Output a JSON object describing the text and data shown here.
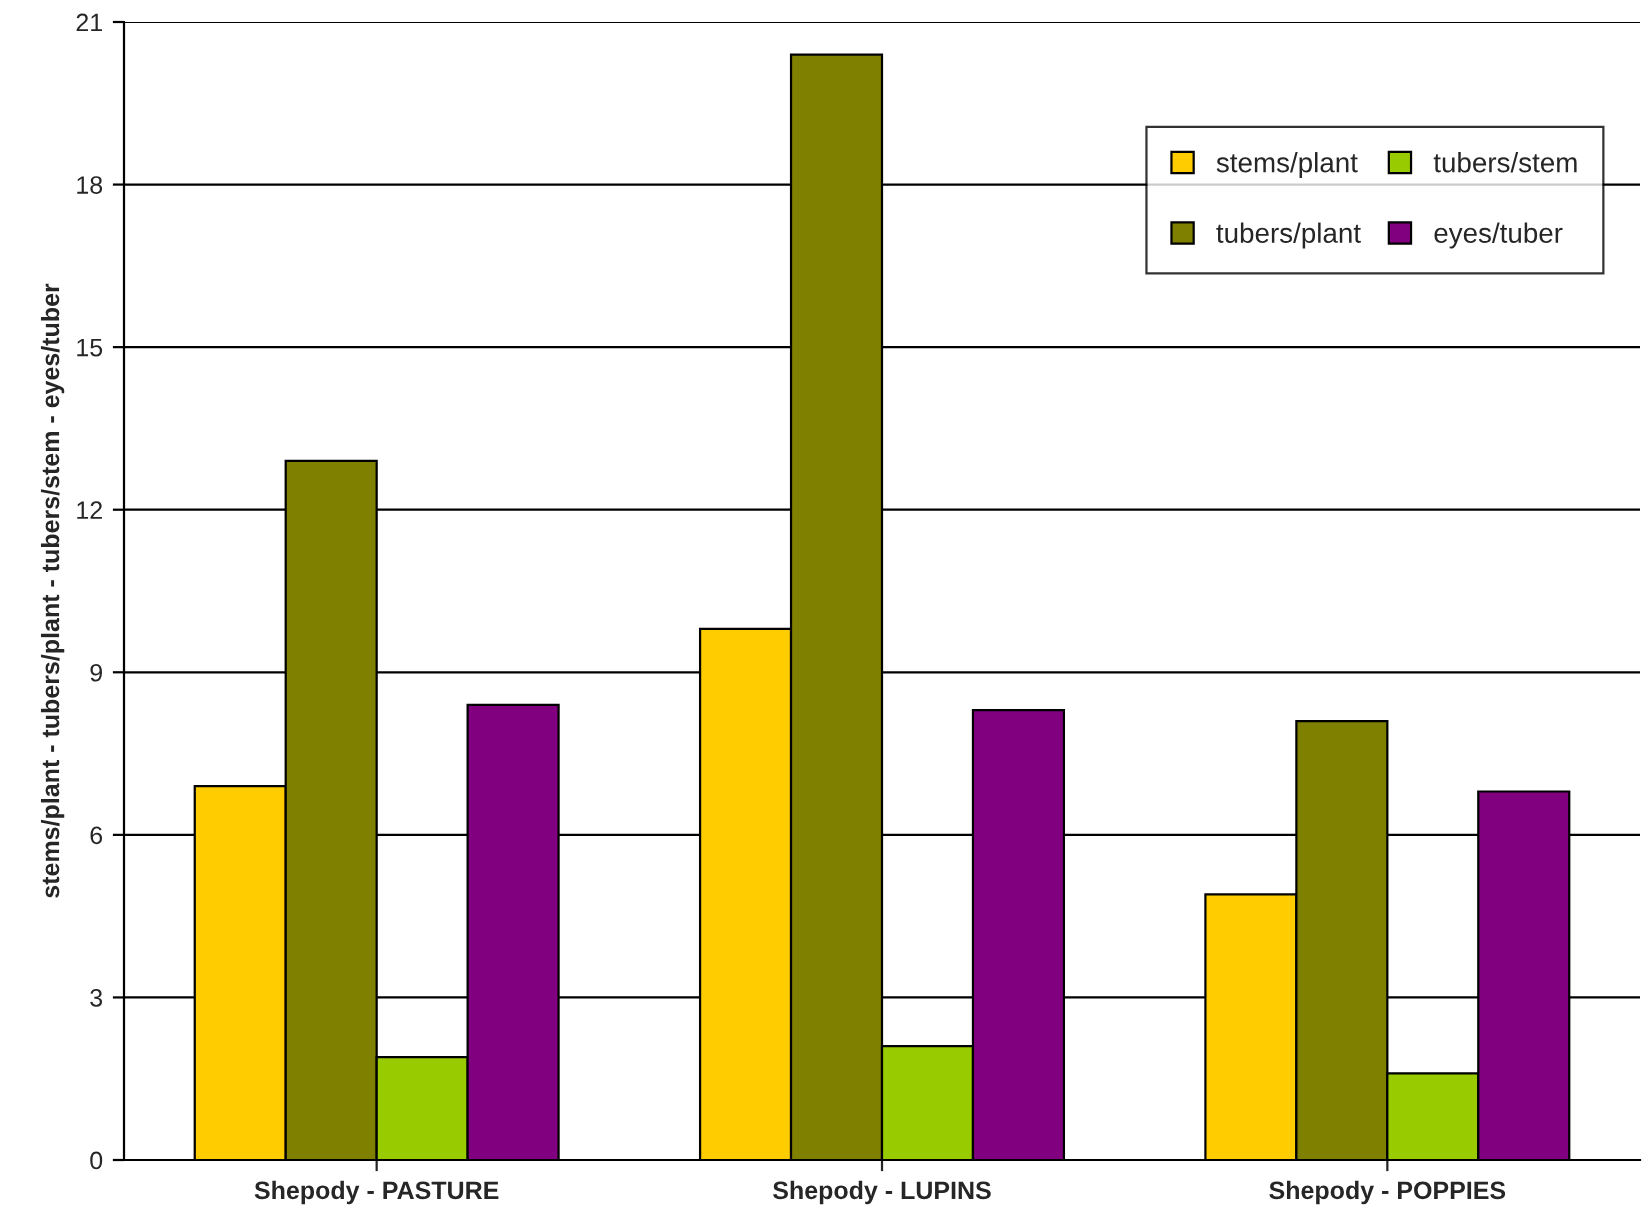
{
  "chart_data": {
    "type": "bar",
    "ylabel": "stems/plant - tubers/plant - tubers/stem - eyes/tuber",
    "categories": [
      "Shepody - PASTURE",
      "Shepody - LUPINS",
      "Shepody - POPPIES"
    ],
    "series": [
      {
        "name": "stems/plant",
        "color": "#ffcc00",
        "values": [
          6.9,
          9.8,
          4.9
        ]
      },
      {
        "name": "tubers/plant",
        "color": "#808000",
        "values": [
          12.9,
          20.4,
          8.1
        ]
      },
      {
        "name": "tubers/stem",
        "color": "#99cc00",
        "values": [
          1.9,
          2.1,
          1.6
        ]
      },
      {
        "name": "eyes/tuber",
        "color": "#800080",
        "values": [
          8.4,
          8.3,
          6.8
        ]
      }
    ],
    "ylim": [
      0,
      21
    ],
    "yticks": [
      0,
      3,
      6,
      9,
      12,
      15,
      18,
      21
    ],
    "grid": "y",
    "legend": "top right"
  }
}
